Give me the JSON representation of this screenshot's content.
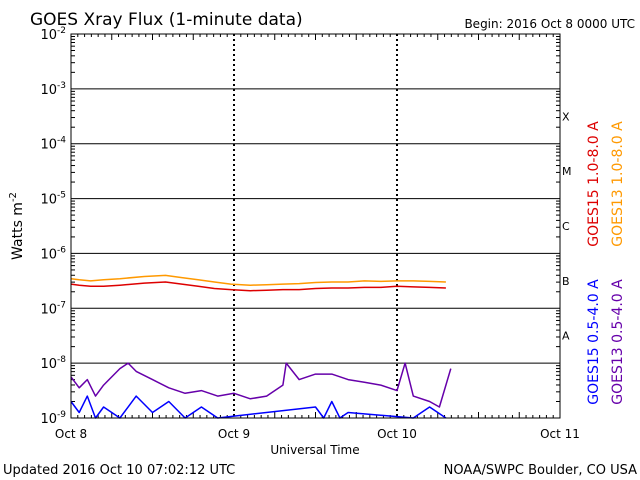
{
  "chart_data": {
    "type": "line",
    "title": "GOES Xray Flux (1-minute data)",
    "begin_label": "Begin:  2016 Oct 8 0000 UTC",
    "xlabel": "Universal Time",
    "ylabel_base": "Watts m",
    "ylabel_exponent": "-2",
    "x_ticks": [
      {
        "label": "Oct 8",
        "day": 0
      },
      {
        "label": "Oct 9",
        "day": 1
      },
      {
        "label": "Oct 10",
        "day": 2
      },
      {
        "label": "Oct 11",
        "day": 3
      }
    ],
    "xlim_days": [
      0,
      3
    ],
    "ylim_log10": [
      -9,
      -2
    ],
    "y_ticks": [
      {
        "mantissa": "10",
        "exp": "-2",
        "log": -2
      },
      {
        "mantissa": "10",
        "exp": "-3",
        "log": -3
      },
      {
        "mantissa": "10",
        "exp": "-4",
        "log": -4
      },
      {
        "mantissa": "10",
        "exp": "-5",
        "log": -5
      },
      {
        "mantissa": "10",
        "exp": "-6",
        "log": -6
      },
      {
        "mantissa": "10",
        "exp": "-7",
        "log": -7
      },
      {
        "mantissa": "10",
        "exp": "-8",
        "log": -8
      },
      {
        "mantissa": "10",
        "exp": "-9",
        "log": -9
      }
    ],
    "flare_classes": [
      {
        "label": "X",
        "log": -3.5
      },
      {
        "label": "M",
        "log": -4.5
      },
      {
        "label": "C",
        "log": -5.5
      },
      {
        "label": "B",
        "log": -6.5
      },
      {
        "label": "A",
        "log": -7.5
      }
    ],
    "series": [
      {
        "name": "GOES15 1.0-8.0 A",
        "color": "#dd0000",
        "points": [
          [
            0,
            -6.56
          ],
          [
            0.05,
            -6.58
          ],
          [
            0.12,
            -6.6
          ],
          [
            0.2,
            -6.6
          ],
          [
            0.3,
            -6.58
          ],
          [
            0.45,
            -6.54
          ],
          [
            0.58,
            -6.52
          ],
          [
            0.68,
            -6.56
          ],
          [
            0.78,
            -6.6
          ],
          [
            0.88,
            -6.64
          ],
          [
            0.98,
            -6.66
          ],
          [
            1.1,
            -6.68
          ],
          [
            1.2,
            -6.67
          ],
          [
            1.3,
            -6.66
          ],
          [
            1.4,
            -6.66
          ],
          [
            1.5,
            -6.64
          ],
          [
            1.6,
            -6.63
          ],
          [
            1.7,
            -6.63
          ],
          [
            1.8,
            -6.62
          ],
          [
            1.9,
            -6.62
          ],
          [
            2.0,
            -6.6
          ],
          [
            2.1,
            -6.61
          ],
          [
            2.2,
            -6.62
          ],
          [
            2.3,
            -6.63
          ]
        ]
      },
      {
        "name": "GOES13 1.0-8.0 A",
        "color": "#ff9900",
        "points": [
          [
            0,
            -6.46
          ],
          [
            0.05,
            -6.48
          ],
          [
            0.12,
            -6.5
          ],
          [
            0.2,
            -6.48
          ],
          [
            0.3,
            -6.46
          ],
          [
            0.45,
            -6.42
          ],
          [
            0.58,
            -6.4
          ],
          [
            0.68,
            -6.44
          ],
          [
            0.78,
            -6.48
          ],
          [
            0.88,
            -6.52
          ],
          [
            0.98,
            -6.56
          ],
          [
            1.1,
            -6.58
          ],
          [
            1.2,
            -6.57
          ],
          [
            1.3,
            -6.56
          ],
          [
            1.4,
            -6.55
          ],
          [
            1.5,
            -6.53
          ],
          [
            1.6,
            -6.52
          ],
          [
            1.7,
            -6.52
          ],
          [
            1.8,
            -6.5
          ],
          [
            1.9,
            -6.51
          ],
          [
            2.0,
            -6.5
          ],
          [
            2.1,
            -6.5
          ],
          [
            2.2,
            -6.51
          ],
          [
            2.3,
            -6.52
          ]
        ]
      },
      {
        "name": "GOES15 0.5-4.0 A",
        "color": "#0000ff",
        "points": [
          [
            0,
            -8.7
          ],
          [
            0.05,
            -8.9
          ],
          [
            0.1,
            -8.6
          ],
          [
            0.15,
            -9.0
          ],
          [
            0.2,
            -8.8
          ],
          [
            0.3,
            -9.0
          ],
          [
            0.4,
            -8.6
          ],
          [
            0.5,
            -8.9
          ],
          [
            0.6,
            -8.7
          ],
          [
            0.7,
            -9.0
          ],
          [
            0.8,
            -8.8
          ],
          [
            0.9,
            -9.0
          ],
          [
            1.5,
            -8.8
          ],
          [
            1.55,
            -9.0
          ],
          [
            1.6,
            -8.7
          ],
          [
            1.65,
            -9.0
          ],
          [
            1.7,
            -8.9
          ],
          [
            2.1,
            -9.0
          ],
          [
            2.2,
            -8.8
          ],
          [
            2.3,
            -9.0
          ]
        ]
      },
      {
        "name": "GOES13 0.5-4.0 A",
        "color": "#6600aa",
        "points": [
          [
            0,
            -8.25
          ],
          [
            0.05,
            -8.45
          ],
          [
            0.1,
            -8.3
          ],
          [
            0.15,
            -8.6
          ],
          [
            0.2,
            -8.4
          ],
          [
            0.3,
            -8.1
          ],
          [
            0.35,
            -8.0
          ],
          [
            0.4,
            -8.15
          ],
          [
            0.5,
            -8.3
          ],
          [
            0.6,
            -8.45
          ],
          [
            0.7,
            -8.55
          ],
          [
            0.8,
            -8.5
          ],
          [
            0.9,
            -8.6
          ],
          [
            1.0,
            -8.55
          ],
          [
            1.1,
            -8.65
          ],
          [
            1.2,
            -8.6
          ],
          [
            1.3,
            -8.4
          ],
          [
            1.32,
            -8.0
          ],
          [
            1.4,
            -8.3
          ],
          [
            1.5,
            -8.2
          ],
          [
            1.6,
            -8.2
          ],
          [
            1.7,
            -8.3
          ],
          [
            1.8,
            -8.35
          ],
          [
            1.9,
            -8.4
          ],
          [
            2.0,
            -8.5
          ],
          [
            2.05,
            -8.0
          ],
          [
            2.1,
            -8.6
          ],
          [
            2.2,
            -8.7
          ],
          [
            2.26,
            -8.8
          ],
          [
            2.3,
            -8.4
          ],
          [
            2.33,
            -8.1
          ]
        ]
      }
    ],
    "footer_left": "Updated 2016 Oct 10 07:02:12 UTC",
    "footer_right": "NOAA/SWPC Boulder, CO USA"
  }
}
